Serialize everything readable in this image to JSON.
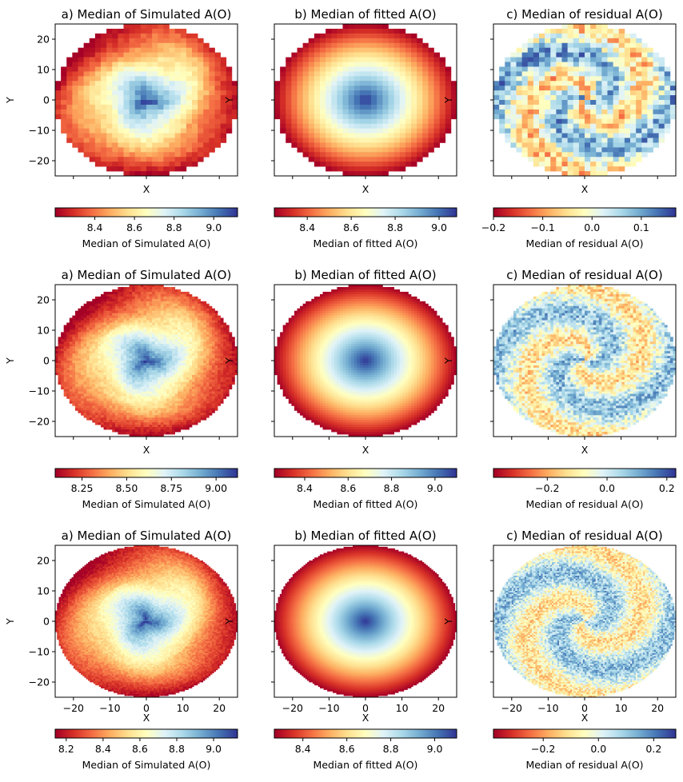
{
  "chart_data": [
    {
      "type": "heatmap",
      "title": "a) Median of Simulated A(O)",
      "xlabel": "X",
      "ylabel": "Y",
      "xlim": [
        -25,
        25
      ],
      "ylim": [
        -25,
        25
      ],
      "xticks": [
        -20,
        -10,
        0,
        10,
        20
      ],
      "yticks": [
        -20,
        -10,
        0,
        10,
        20
      ],
      "show_xticklabels": false,
      "grid": false,
      "colormap": "RdYlBu",
      "resolution": "coarse",
      "field": "simulated",
      "colorbar": {
        "label": "Median of Simulated A(O)",
        "range": [
          8.2,
          9.12
        ],
        "ticks": [
          8.4,
          8.6,
          8.8,
          9.0
        ],
        "tick_labels": [
          "8.4",
          "8.6",
          "8.8",
          "9.0"
        ],
        "orientation": "horizontal",
        "placement": "below"
      }
    },
    {
      "type": "heatmap",
      "title": "b) Median of fitted A(O)",
      "xlabel": "X",
      "ylabel": "Y",
      "xlim": [
        -25,
        25
      ],
      "ylim": [
        -25,
        25
      ],
      "xticks": [
        -20,
        -10,
        0,
        10,
        20
      ],
      "yticks": [
        -20,
        -10,
        0,
        10,
        20
      ],
      "show_xticklabels": false,
      "show_yticklabels": false,
      "grid": false,
      "colormap": "RdYlBu",
      "resolution": "coarse",
      "field": "fitted",
      "colorbar": {
        "label": "Median of fitted A(O)",
        "range": [
          8.25,
          9.08
        ],
        "ticks": [
          8.4,
          8.6,
          8.8,
          9.0
        ],
        "tick_labels": [
          "8.4",
          "8.6",
          "8.8",
          "9.0"
        ],
        "orientation": "horizontal",
        "placement": "below"
      }
    },
    {
      "type": "heatmap",
      "title": "c) Median of residual A(O)",
      "xlabel": "X",
      "ylabel": "Y",
      "xlim": [
        -25,
        25
      ],
      "ylim": [
        -25,
        25
      ],
      "xticks": [
        -20,
        -10,
        0,
        10,
        20
      ],
      "yticks": [
        -20,
        -10,
        0,
        10,
        20
      ],
      "show_xticklabels": false,
      "show_yticklabels": false,
      "grid": false,
      "colormap": "RdYlBu",
      "resolution": "coarse",
      "field": "residual",
      "colorbar": {
        "label": "Median of residual A(O)",
        "range": [
          -0.2,
          0.17
        ],
        "ticks": [
          -0.2,
          -0.1,
          0.0,
          0.1
        ],
        "tick_labels": [
          "−0.2",
          "−0.1",
          "0.0",
          "0.1"
        ],
        "orientation": "horizontal",
        "placement": "below"
      }
    },
    {
      "type": "heatmap",
      "title": "a) Median of Simulated A(O)",
      "xlabel": "X",
      "ylabel": "Y",
      "xlim": [
        -25,
        25
      ],
      "ylim": [
        -25,
        25
      ],
      "xticks": [
        -20,
        -10,
        0,
        10,
        20
      ],
      "yticks": [
        -20,
        -10,
        0,
        10,
        20
      ],
      "show_xticklabels": false,
      "grid": false,
      "colormap": "RdYlBu",
      "resolution": "medium",
      "field": "simulated",
      "colorbar": {
        "label": "Median of Simulated A(O)",
        "range": [
          8.1,
          9.12
        ],
        "ticks": [
          8.25,
          8.5,
          8.75,
          9.0
        ],
        "tick_labels": [
          "8.25",
          "8.50",
          "8.75",
          "9.00"
        ],
        "orientation": "horizontal",
        "placement": "below"
      }
    },
    {
      "type": "heatmap",
      "title": "b) Median of fitted A(O)",
      "xlabel": "X",
      "ylabel": "Y",
      "xlim": [
        -25,
        25
      ],
      "ylim": [
        -25,
        25
      ],
      "xticks": [
        -20,
        -10,
        0,
        10,
        20
      ],
      "yticks": [
        -20,
        -10,
        0,
        10,
        20
      ],
      "show_xticklabels": false,
      "show_yticklabels": false,
      "grid": false,
      "colormap": "RdYlBu",
      "resolution": "medium",
      "field": "fitted",
      "colorbar": {
        "label": "Median of fitted A(O)",
        "range": [
          8.26,
          9.1
        ],
        "ticks": [
          8.4,
          8.6,
          8.8,
          9.0
        ],
        "tick_labels": [
          "8.4",
          "8.6",
          "8.8",
          "9.0"
        ],
        "orientation": "horizontal",
        "placement": "below"
      }
    },
    {
      "type": "heatmap",
      "title": "c) Median of residual A(O)",
      "xlabel": "X",
      "ylabel": "Y",
      "xlim": [
        -25,
        25
      ],
      "ylim": [
        -25,
        25
      ],
      "xticks": [
        -20,
        -10,
        0,
        10,
        20
      ],
      "yticks": [
        -20,
        -10,
        0,
        10,
        20
      ],
      "show_xticklabels": false,
      "show_yticklabels": false,
      "grid": false,
      "colormap": "RdYlBu",
      "resolution": "medium",
      "field": "residual",
      "colorbar": {
        "label": "Median of residual A(O)",
        "range": [
          -0.38,
          0.23
        ],
        "ticks": [
          -0.2,
          0.0,
          0.2
        ],
        "tick_labels": [
          "−0.2",
          "0.0",
          "0.2"
        ],
        "orientation": "horizontal",
        "placement": "below"
      }
    },
    {
      "type": "heatmap",
      "title": "a) Median of Simulated A(O)",
      "xlabel": "X",
      "ylabel": "Y",
      "xlim": [
        -25,
        25
      ],
      "ylim": [
        -25,
        25
      ],
      "xticks": [
        -20,
        -10,
        0,
        10,
        20
      ],
      "yticks": [
        -20,
        -10,
        0,
        10,
        20
      ],
      "show_xticklabels": true,
      "grid": false,
      "colormap": "RdYlBu",
      "resolution": "fine",
      "field": "simulated",
      "colorbar": {
        "label": "Median of Simulated A(O)",
        "range": [
          8.14,
          9.13
        ],
        "ticks": [
          8.2,
          8.4,
          8.6,
          8.8,
          9.0
        ],
        "tick_labels": [
          "8.2",
          "8.4",
          "8.6",
          "8.8",
          "9.0"
        ],
        "orientation": "horizontal",
        "placement": "below"
      }
    },
    {
      "type": "heatmap",
      "title": "b) Median of fitted A(O)",
      "xlabel": "X",
      "ylabel": "Y",
      "xlim": [
        -25,
        25
      ],
      "ylim": [
        -25,
        25
      ],
      "xticks": [
        -20,
        -10,
        0,
        10,
        20
      ],
      "yticks": [
        -20,
        -10,
        0,
        10,
        20
      ],
      "show_xticklabels": true,
      "show_yticklabels": false,
      "grid": false,
      "colormap": "RdYlBu",
      "resolution": "fine",
      "field": "fitted",
      "colorbar": {
        "label": "Median of fitted A(O)",
        "range": [
          8.27,
          9.1
        ],
        "ticks": [
          8.4,
          8.6,
          8.8,
          9.0
        ],
        "tick_labels": [
          "8.4",
          "8.6",
          "8.8",
          "9.0"
        ],
        "orientation": "horizontal",
        "placement": "below"
      }
    },
    {
      "type": "heatmap",
      "title": "c) Median of residual A(O)",
      "xlabel": "X",
      "ylabel": "Y",
      "xlim": [
        -25,
        25
      ],
      "ylim": [
        -25,
        25
      ],
      "xticks": [
        -20,
        -10,
        0,
        10,
        20
      ],
      "yticks": [
        -20,
        -10,
        0,
        10,
        20
      ],
      "show_xticklabels": true,
      "show_yticklabels": false,
      "grid": false,
      "colormap": "RdYlBu",
      "resolution": "fine",
      "field": "residual",
      "colorbar": {
        "label": "Median of residual A(O)",
        "range": [
          -0.38,
          0.28
        ],
        "ticks": [
          -0.2,
          0.0,
          0.2
        ],
        "tick_labels": [
          "−0.2",
          "0.0",
          "0.2"
        ],
        "orientation": "horizontal",
        "placement": "below"
      }
    }
  ],
  "colors": {
    "colormap_stops": [
      "#a50026",
      "#d73027",
      "#f46d43",
      "#fdae61",
      "#fee090",
      "#ffffbf",
      "#e0f3f8",
      "#abd9e9",
      "#74add1",
      "#4575b4",
      "#313695"
    ],
    "axes": "#000000",
    "background": "#ffffff"
  }
}
